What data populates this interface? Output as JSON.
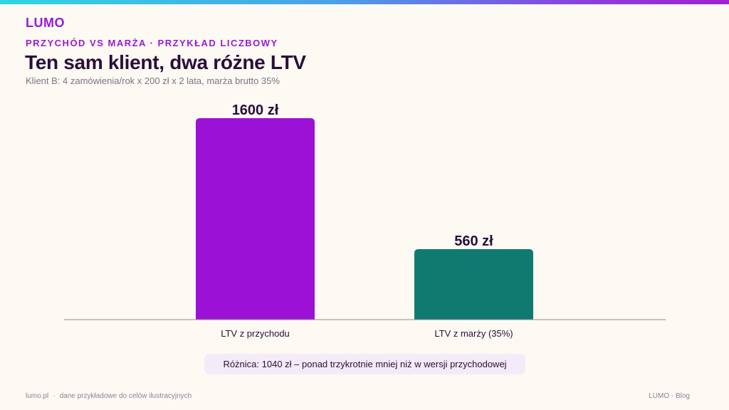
{
  "brand": {
    "logo_text": "LUMO"
  },
  "header": {
    "eyebrow": "PRZYCHÓD VS MARŻA · PRZYKŁAD LICZBOWY",
    "title": "Ten sam klient, dwa różne LTV",
    "subtitle": "Klient B: 4 zamówienia/rok x 200 zł x 2 lata, marża brutto 35%"
  },
  "chart_data": {
    "type": "bar",
    "categories": [
      "LTV z przychodu",
      "LTV z marży (35%)"
    ],
    "values": [
      1600,
      560
    ],
    "value_labels": [
      "1600 zł",
      "560 zł"
    ],
    "colors": [
      "#9b12d6",
      "#107a70"
    ],
    "ylim": [
      0,
      1600
    ],
    "grid": false,
    "legend": "none"
  },
  "difference_note": "Różnica: 1040 zł  –  ponad trzykrotnie mniej niż w wersji przychodowej",
  "footer": {
    "left_site": "lumo.pl",
    "left_separator": "·",
    "left_note": "dane przykładowe do celów ilustracyjnych",
    "right": "LUMO · Blog"
  },
  "colors": {
    "accent": "#9b19d6",
    "title": "#2a0e3a",
    "background": "#fdf9f3"
  }
}
